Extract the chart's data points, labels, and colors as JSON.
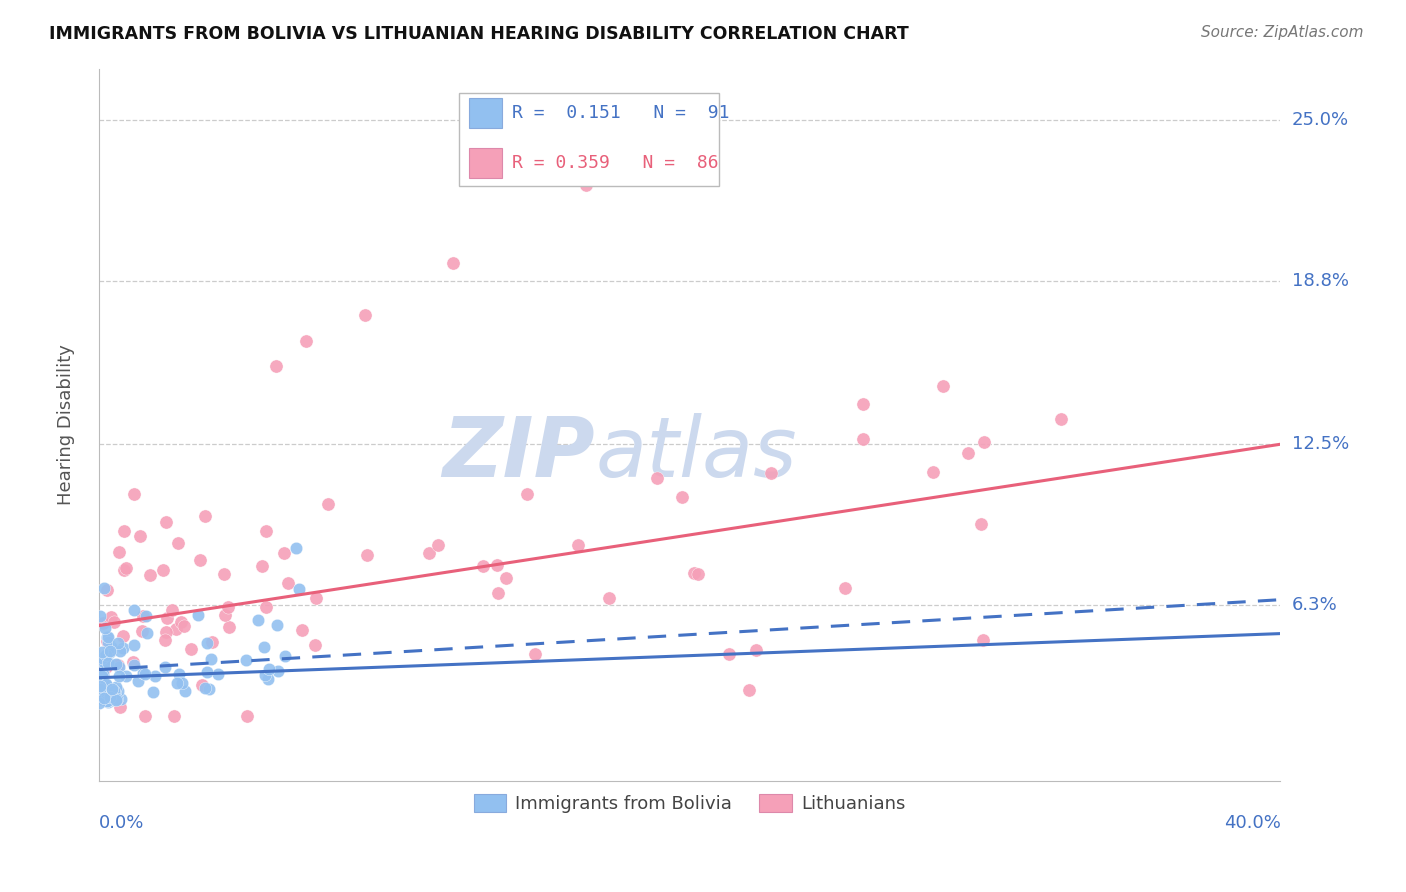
{
  "title": "IMMIGRANTS FROM BOLIVIA VS LITHUANIAN HEARING DISABILITY CORRELATION CHART",
  "source": "Source: ZipAtlas.com",
  "ylabel": "Hearing Disability",
  "ytick_labels": [
    "25.0%",
    "18.8%",
    "12.5%",
    "6.3%"
  ],
  "ytick_values": [
    0.25,
    0.188,
    0.125,
    0.063
  ],
  "xmin": 0.0,
  "xmax": 0.4,
  "ymin": -0.005,
  "ymax": 0.27,
  "color_bolivia": "#92c0f0",
  "color_lithuanian": "#f5a0b8",
  "color_trend_bolivia": "#4472c4",
  "color_trend_lithuanian": "#e8607a",
  "background_color": "#ffffff",
  "grid_color": "#cccccc",
  "watermark_zip": "ZIP",
  "watermark_atlas": "atlas",
  "watermark_color": "#ccd9ee"
}
